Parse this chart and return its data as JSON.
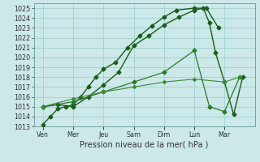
{
  "x_labels": [
    "Ven",
    "Mer",
    "Jeu",
    "Sam",
    "Dim",
    "Lun",
    "Mar"
  ],
  "x_positions": [
    0,
    1,
    2,
    3,
    4,
    5,
    6
  ],
  "series": [
    {
      "name": "line1_steep",
      "x": [
        0,
        0.25,
        0.5,
        0.75,
        1.0,
        1.25,
        1.5,
        1.75,
        2.0,
        2.4,
        2.8,
        3.2,
        3.6,
        4.0,
        4.4,
        5.0,
        5.4,
        5.8
      ],
      "y": [
        1013.2,
        1014.0,
        1014.8,
        1015.0,
        1015.2,
        1016.0,
        1017.0,
        1018.0,
        1018.8,
        1019.5,
        1021.0,
        1022.2,
        1023.2,
        1024.1,
        1024.8,
        1025.0,
        1025.0,
        1023.0
      ],
      "color": "#1a5c1a",
      "linewidth": 1.0,
      "marker": "D",
      "markersize": 2.5
    },
    {
      "name": "line2_medium",
      "x": [
        0,
        0.5,
        1.0,
        1.5,
        2.0,
        2.5,
        3.0,
        3.5,
        4.0,
        4.5,
        5.0,
        5.3,
        5.5,
        5.7,
        6.0,
        6.3,
        6.6
      ],
      "y": [
        1015.0,
        1015.2,
        1015.0,
        1016.0,
        1017.2,
        1018.5,
        1021.2,
        1022.2,
        1023.3,
        1024.1,
        1024.8,
        1025.0,
        1023.5,
        1020.5,
        1017.5,
        1014.2,
        1018.0
      ],
      "color": "#1a5c1a",
      "linewidth": 1.0,
      "marker": "D",
      "markersize": 2.5
    },
    {
      "name": "line3_gradual",
      "x": [
        0,
        1.0,
        2.0,
        3.0,
        4.0,
        5.0,
        5.5,
        6.0,
        6.5
      ],
      "y": [
        1015.0,
        1015.5,
        1016.5,
        1017.5,
        1018.5,
        1020.7,
        1015.0,
        1014.5,
        1018.0
      ],
      "color": "#2a7a2a",
      "linewidth": 0.9,
      "marker": "D",
      "markersize": 2.5
    },
    {
      "name": "line4_flat",
      "x": [
        0,
        1.0,
        2.0,
        3.0,
        4.0,
        5.0,
        6.0,
        6.5
      ],
      "y": [
        1015.0,
        1015.8,
        1016.5,
        1017.0,
        1017.5,
        1017.8,
        1017.5,
        1018.0
      ],
      "color": "#3a8a3a",
      "linewidth": 0.8,
      "marker": "D",
      "markersize": 2.0
    }
  ],
  "xlabel_text": "Pression niveau de la mer( hPa )",
  "ylim": [
    1013,
    1025.5
  ],
  "yticks": [
    1013,
    1014,
    1015,
    1016,
    1017,
    1018,
    1019,
    1020,
    1021,
    1022,
    1023,
    1024,
    1025
  ],
  "xlim": [
    -0.3,
    7.0
  ],
  "bg_color": "#cce8e8",
  "grid_color": "#99cccc",
  "axes_color": "#669999",
  "text_color": "#333333",
  "tick_label_size": 5.8,
  "xlabel_size": 7.0
}
